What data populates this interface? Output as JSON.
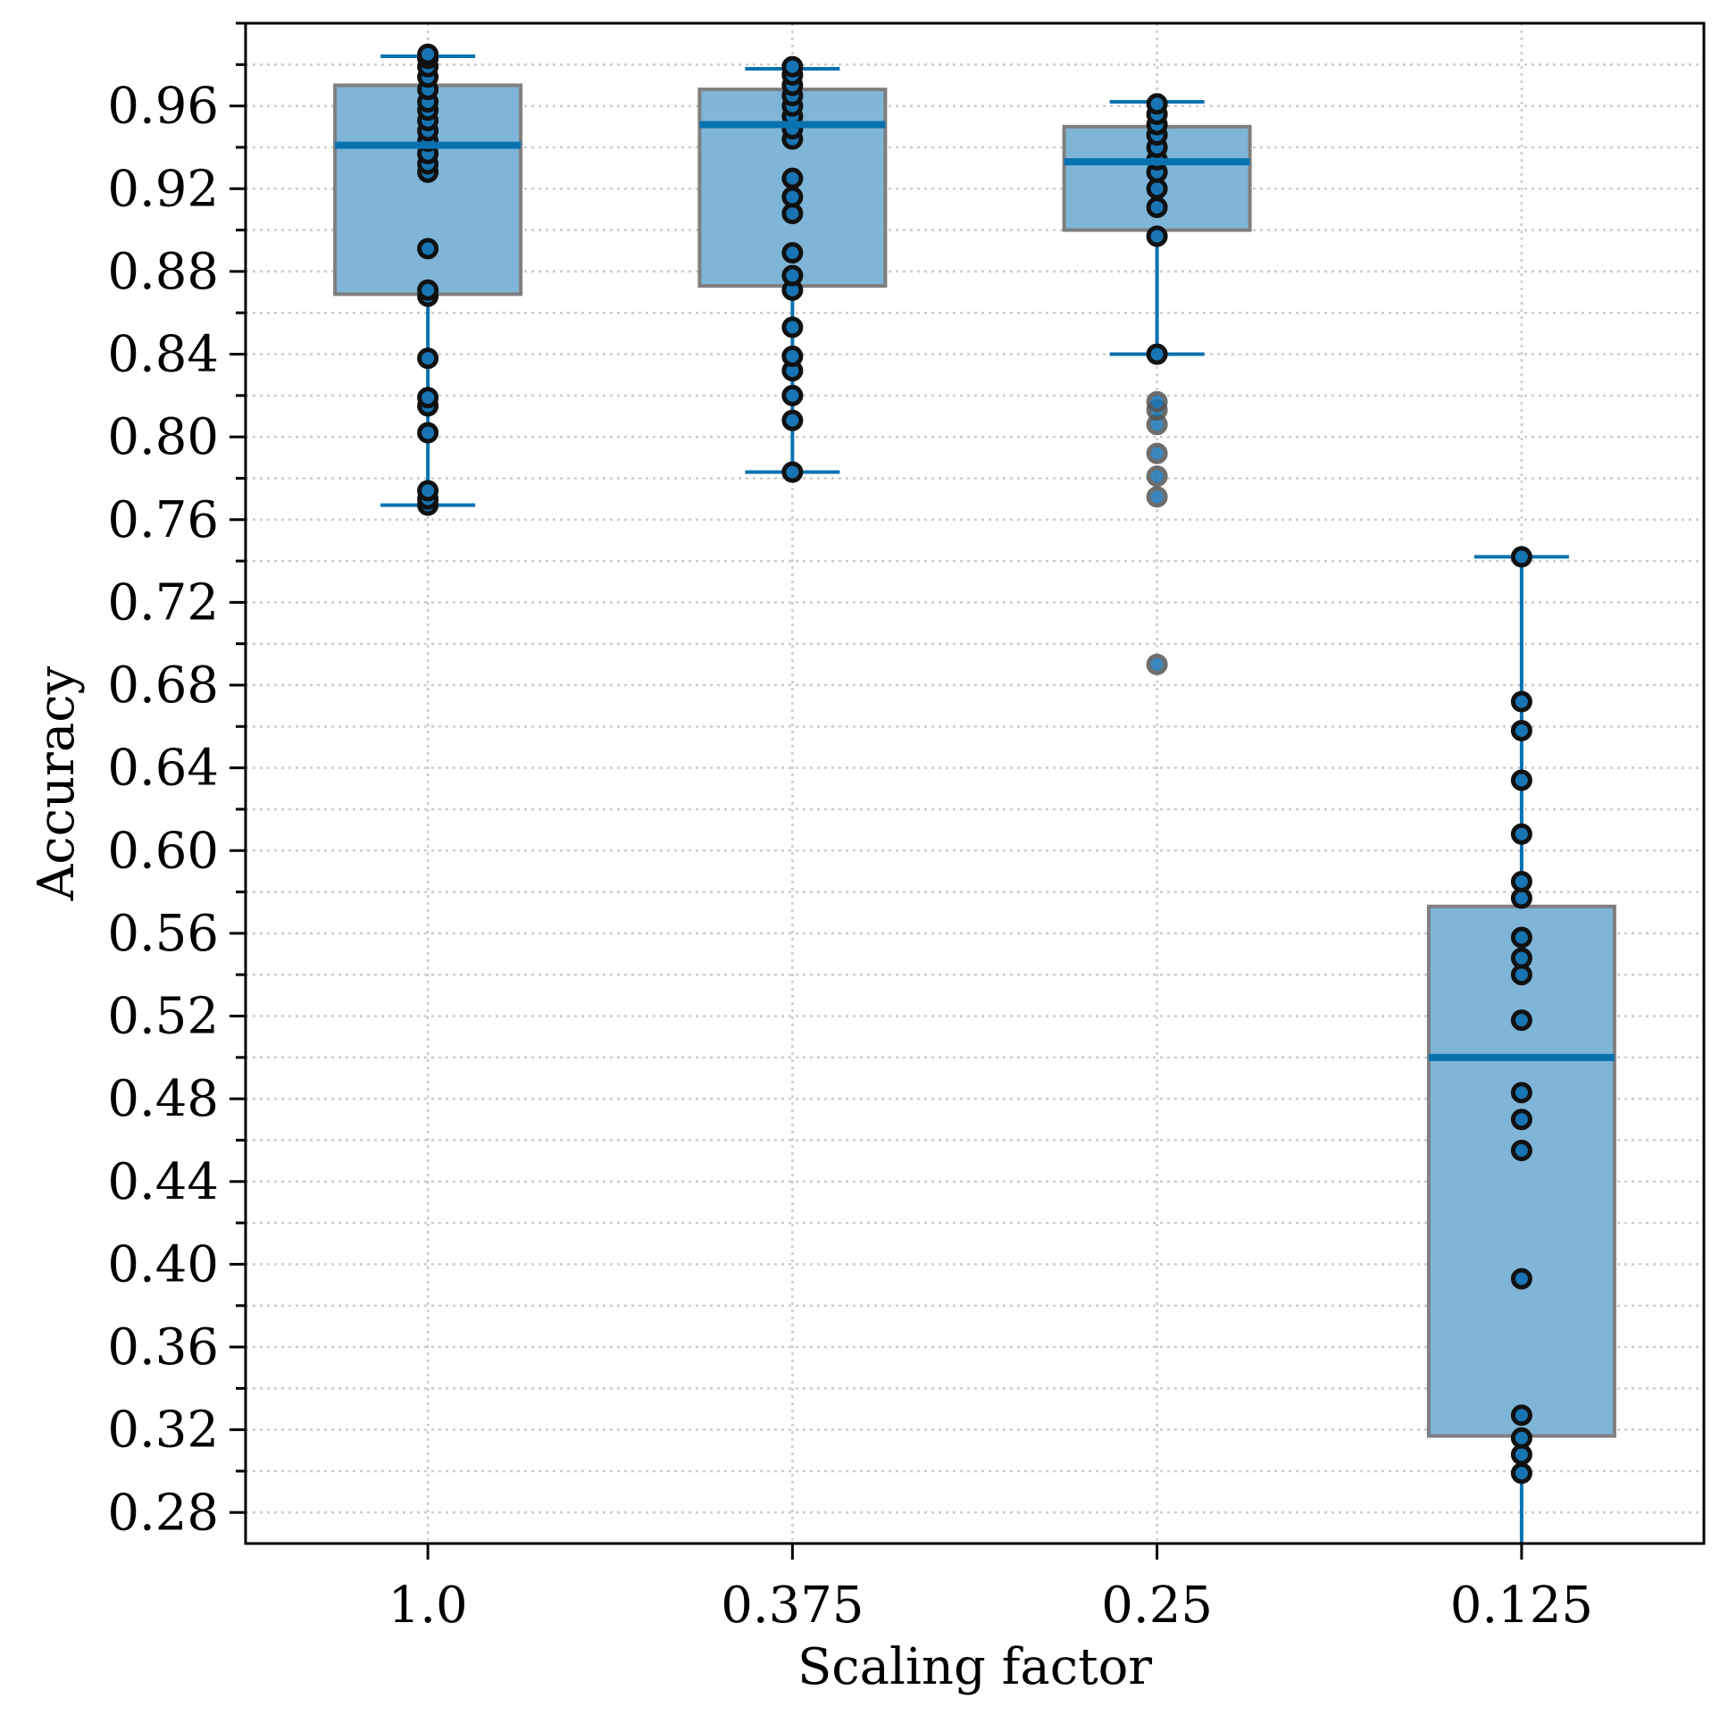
{
  "chart_data": {
    "type": "box",
    "xlabel": "Scaling factor",
    "ylabel": "Accuracy",
    "ylim": [
      0.265,
      1.0
    ],
    "yticks": [
      "0.28",
      "0.32",
      "0.36",
      "0.40",
      "0.44",
      "0.48",
      "0.52",
      "0.56",
      "0.60",
      "0.64",
      "0.68",
      "0.72",
      "0.76",
      "0.80",
      "0.84",
      "0.88",
      "0.92",
      "0.96"
    ],
    "categories": [
      "1.0",
      "0.375",
      "0.25",
      "0.125"
    ],
    "boxes": [
      {
        "category": "1.0",
        "whisker_low": 0.767,
        "q1": 0.869,
        "median": 0.941,
        "q3": 0.97,
        "whisker_high": 0.984,
        "points": [
          0.767,
          0.77,
          0.774,
          0.802,
          0.815,
          0.819,
          0.838,
          0.868,
          0.871,
          0.891,
          0.928,
          0.932,
          0.937,
          0.943,
          0.948,
          0.953,
          0.958,
          0.962,
          0.968,
          0.974,
          0.979,
          0.983,
          0.985
        ],
        "outliers": []
      },
      {
        "category": "0.375",
        "whisker_low": 0.783,
        "q1": 0.873,
        "median": 0.951,
        "q3": 0.968,
        "whisker_high": 0.978,
        "points": [
          0.783,
          0.808,
          0.82,
          0.832,
          0.839,
          0.853,
          0.871,
          0.878,
          0.889,
          0.908,
          0.916,
          0.925,
          0.944,
          0.949,
          0.955,
          0.96,
          0.965,
          0.97,
          0.975,
          0.979
        ],
        "outliers": []
      },
      {
        "category": "0.25",
        "whisker_low": 0.84,
        "q1": 0.9,
        "median": 0.933,
        "q3": 0.95,
        "whisker_high": 0.962,
        "points": [
          0.84,
          0.897,
          0.911,
          0.92,
          0.928,
          0.934,
          0.94,
          0.946,
          0.951,
          0.956,
          0.961
        ],
        "outliers": [
          0.69,
          0.771,
          0.781,
          0.792,
          0.806,
          0.813,
          0.817
        ]
      },
      {
        "category": "0.125",
        "whisker_low": 0.265,
        "q1": 0.317,
        "median": 0.5,
        "q3": 0.573,
        "whisker_high": 0.742,
        "points": [
          0.299,
          0.308,
          0.316,
          0.327,
          0.393,
          0.455,
          0.47,
          0.483,
          0.518,
          0.54,
          0.548,
          0.558,
          0.577,
          0.585,
          0.608,
          0.634,
          0.658,
          0.672,
          0.742
        ],
        "outliers": []
      }
    ],
    "colors": {
      "box_fill": "#7fb5d7",
      "box_edge": "#7f7f7f",
      "line": "#0872b0",
      "point_fill": "#1874b3",
      "point_edge": "#111111",
      "grid": "#cccccc",
      "axis": "#000000"
    }
  }
}
